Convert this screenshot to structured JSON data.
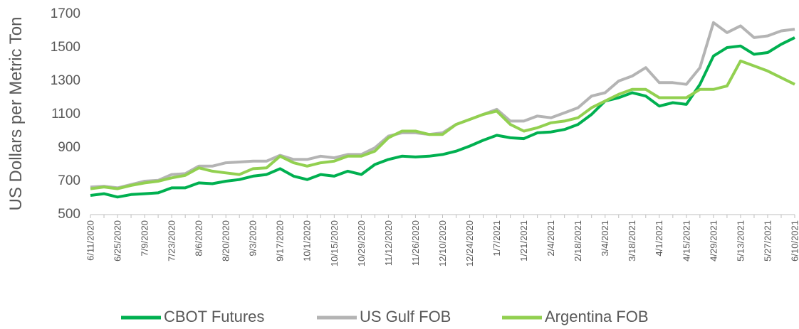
{
  "chart_data": {
    "type": "line",
    "y_label": "US Dollars per Metric Ton",
    "categories": [
      "6/11/2020",
      null,
      "6/25/2020",
      null,
      "7/9/2020",
      null,
      "7/23/2020",
      null,
      "8/6/2020",
      null,
      "8/20/2020",
      null,
      "9/3/2020",
      null,
      "9/17/2020",
      null,
      "10/1/2020",
      null,
      "10/15/2020",
      null,
      "10/29/2020",
      null,
      "11/12/2020",
      null,
      "11/26/2020",
      null,
      "12/10/2020",
      null,
      "12/24/2020",
      null,
      "1/7/2021",
      null,
      "1/21/2021",
      null,
      "2/4/2021",
      null,
      "2/18/2021",
      null,
      "3/4/2021",
      null,
      "3/18/2021",
      null,
      "4/1/2021",
      null,
      "4/15/2021",
      null,
      "4/29/2021",
      null,
      "5/13/2021",
      null,
      "5/27/2021",
      null,
      "6/10/2021"
    ],
    "series": [
      {
        "name": "CBOT Futures",
        "color": "#00b050",
        "values": [
          615,
          625,
          605,
          620,
          625,
          630,
          660,
          660,
          690,
          685,
          700,
          710,
          730,
          740,
          775,
          730,
          710,
          740,
          730,
          760,
          740,
          800,
          830,
          850,
          845,
          850,
          860,
          880,
          910,
          945,
          975,
          960,
          955,
          990,
          995,
          1010,
          1040,
          1100,
          1180,
          1200,
          1230,
          1210,
          1150,
          1170,
          1160,
          1280,
          1450,
          1500,
          1510,
          1460,
          1470,
          1520,
          1560
        ]
      },
      {
        "name": "US Gulf FOB",
        "color": "#b4b4b4",
        "values": [
          665,
          670,
          660,
          680,
          700,
          705,
          740,
          745,
          790,
          790,
          810,
          815,
          820,
          820,
          855,
          830,
          830,
          850,
          840,
          860,
          860,
          900,
          970,
          990,
          990,
          980,
          990,
          1040,
          1070,
          1100,
          1130,
          1060,
          1060,
          1090,
          1080,
          1110,
          1140,
          1210,
          1230,
          1300,
          1330,
          1380,
          1290,
          1290,
          1280,
          1380,
          1650,
          1590,
          1630,
          1560,
          1570,
          1600,
          1610
        ]
      },
      {
        "name": "Argentina FOB",
        "color": "#92d050",
        "values": [
          655,
          665,
          655,
          675,
          690,
          700,
          720,
          735,
          780,
          760,
          750,
          740,
          775,
          780,
          850,
          810,
          790,
          810,
          820,
          850,
          850,
          880,
          960,
          1000,
          1000,
          980,
          980,
          1040,
          1070,
          1100,
          1120,
          1040,
          1000,
          1020,
          1050,
          1060,
          1080,
          1140,
          1180,
          1220,
          1250,
          1250,
          1200,
          1200,
          1200,
          1250,
          1250,
          1270,
          1420,
          1390,
          1360,
          1320,
          1280
        ]
      }
    ],
    "ylim": [
      500,
      1700
    ],
    "yticks": [
      500,
      700,
      900,
      1100,
      1300,
      1500,
      1700
    ],
    "grid": false,
    "legend": "bottom"
  }
}
